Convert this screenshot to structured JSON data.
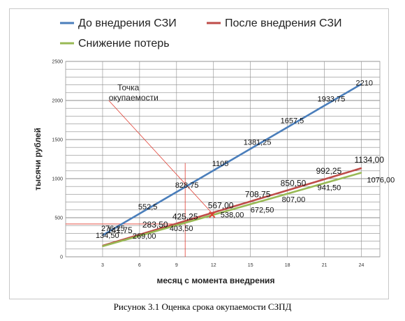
{
  "caption": "Рисунок 3.1 Оценка срока окупаемости СЗПД",
  "colors": {
    "before": "#4a7ebb",
    "after": "#be4b48",
    "savings": "#98b954",
    "grid": "#8c8c8c",
    "marker": "#e03c31",
    "guide": "#e03c31"
  },
  "chart_data": {
    "type": "line",
    "xlabel": "месяц с момента внедрения",
    "ylabel": "тысячи рублей",
    "x_ticks": [
      3,
      6,
      9,
      12,
      15,
      18,
      21,
      24
    ],
    "y_ticks": [
      0,
      500,
      1000,
      1500,
      2000,
      2500
    ],
    "xlim": [
      0,
      25.5
    ],
    "ylim": [
      0,
      2500
    ],
    "grid": true,
    "legend_position": "top",
    "annotation": {
      "text_line1": "Точка",
      "text_line2": "окупаемости",
      "x": 12,
      "y": 538
    },
    "series": [
      {
        "name": "До внедрения СЗИ",
        "color": "#4a7ebb",
        "x": [
          3,
          6,
          9,
          12,
          15,
          18,
          21,
          24
        ],
        "values": [
          276.25,
          552.5,
          828.75,
          1105,
          1381.25,
          1657.5,
          1933.75,
          2210
        ],
        "labels": [
          "276,25",
          "552,5",
          "828,75",
          "1105",
          "1381,25",
          "1657,5",
          "1933,75",
          "2210"
        ]
      },
      {
        "name": "После внедрения СЗИ",
        "color": "#be4b48",
        "x": [
          3,
          6,
          9,
          12,
          15,
          18,
          21,
          24
        ],
        "values": [
          141.75,
          283.5,
          425.25,
          567,
          708.75,
          850.5,
          992.25,
          1134
        ],
        "labels": [
          "141,75",
          "283,50",
          "425,25",
          "567,00",
          "708,75",
          "850,50",
          "992,25",
          "1134,00"
        ]
      },
      {
        "name": "Снижение потерь",
        "color": "#98b954",
        "x": [
          3,
          6,
          9,
          12,
          15,
          18,
          21,
          24
        ],
        "values": [
          134.5,
          269,
          403.5,
          538,
          672.5,
          807,
          941.5,
          1076
        ],
        "labels": [
          "134,50",
          "269,00",
          "403,50",
          "538,00",
          "672,50",
          "807,00",
          "941,50",
          "1076,00"
        ]
      }
    ]
  }
}
